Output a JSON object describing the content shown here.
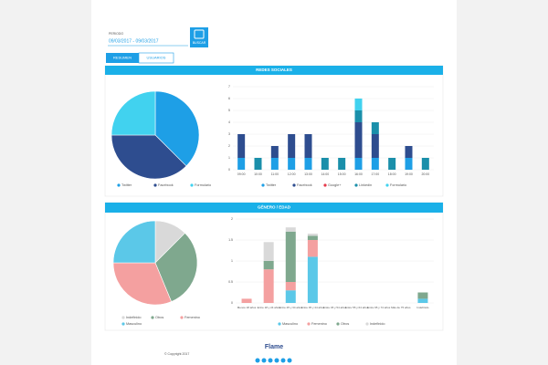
{
  "header": {
    "period_label": "PERIODO",
    "period_value": "09/03/2017 - 09/03/2017",
    "button": "BUSCAR"
  },
  "tabs": [
    "RESUMEN",
    "USUARIOS"
  ],
  "panels": [
    "REDES SOCIALES",
    "GÉNERO / EDAD"
  ],
  "chart_data": [
    {
      "type": "pie",
      "categories": [
        "Twitter",
        "Facebook",
        "Formulario"
      ],
      "values": [
        37.5,
        37.5,
        25
      ],
      "colors": [
        "#1e9fe6",
        "#2e4d8f",
        "#41d2ef"
      ]
    },
    {
      "type": "bar",
      "stacked": true,
      "categories": [
        "09:00",
        "10:00",
        "11:00",
        "12:00",
        "13:00",
        "14:00",
        "15:00",
        "16:00",
        "17:00",
        "18:00",
        "19:00",
        "20:00"
      ],
      "series": [
        {
          "name": "Twitter",
          "color": "#1e9fe6",
          "values": [
            1,
            0,
            1,
            1,
            1,
            0,
            0,
            1,
            1,
            0,
            1,
            0
          ]
        },
        {
          "name": "Facebook",
          "color": "#2e4d8f",
          "values": [
            2,
            0,
            1,
            2,
            2,
            0,
            0,
            3,
            2,
            0,
            1,
            0
          ]
        },
        {
          "name": "Google+",
          "color": "#e5394a",
          "values": [
            0,
            0,
            0,
            0,
            0,
            0,
            0,
            0,
            0,
            0,
            0,
            0
          ]
        },
        {
          "name": "Linkedin",
          "color": "#1a8faa",
          "values": [
            0,
            1,
            0,
            0,
            0,
            1,
            1,
            1,
            1,
            1,
            0,
            1
          ]
        },
        {
          "name": "Formulario",
          "color": "#41d2ef",
          "values": [
            0,
            0,
            0,
            0,
            0,
            0,
            0,
            1,
            0,
            0,
            0,
            0
          ]
        }
      ],
      "ylim": [
        0,
        7
      ],
      "yticks": [
        0,
        1,
        2,
        3,
        4,
        5,
        6,
        7
      ]
    },
    {
      "type": "pie",
      "categories": [
        "Indefinido",
        "Otros",
        "Femenino",
        "Masculino"
      ],
      "values": [
        12.5,
        31.25,
        31.25,
        25
      ],
      "colors": [
        "#d9d9d9",
        "#7fa88e",
        "#f4a0a0",
        "#5bc8e8"
      ]
    },
    {
      "type": "bar",
      "stacked": true,
      "categories": [
        "Menos 18 años",
        "Entre 18 y 24 años",
        "Entre 25 y 34 años",
        "Entre 35 y 44 años",
        "Entre 45 y 54 años",
        "Entre 55 y 64 años",
        "Entre 65 y 74 años",
        "Más de 75 años",
        "Indefinido"
      ],
      "series": [
        {
          "name": "Masculino",
          "color": "#5bc8e8",
          "values": [
            0,
            0,
            0.3,
            1.1,
            0,
            0,
            0,
            0,
            0.1
          ]
        },
        {
          "name": "Femenino",
          "color": "#f4a0a0",
          "values": [
            0.1,
            0.8,
            0.2,
            0.4,
            0,
            0,
            0,
            0,
            0
          ]
        },
        {
          "name": "Otros",
          "color": "#7fa88e",
          "values": [
            0,
            0.2,
            1.2,
            0.1,
            0,
            0,
            0,
            0,
            0.15
          ]
        },
        {
          "name": "Indefinido",
          "color": "#d9d9d9",
          "values": [
            0,
            0.45,
            0.1,
            0.05,
            0,
            0,
            0,
            0,
            0
          ]
        }
      ],
      "ylim": [
        0,
        2
      ],
      "yticks": [
        0,
        0.5,
        1,
        1.5,
        2
      ]
    }
  ],
  "footer": {
    "logo": "Flame",
    "copyright": "© Copyright 2017"
  }
}
